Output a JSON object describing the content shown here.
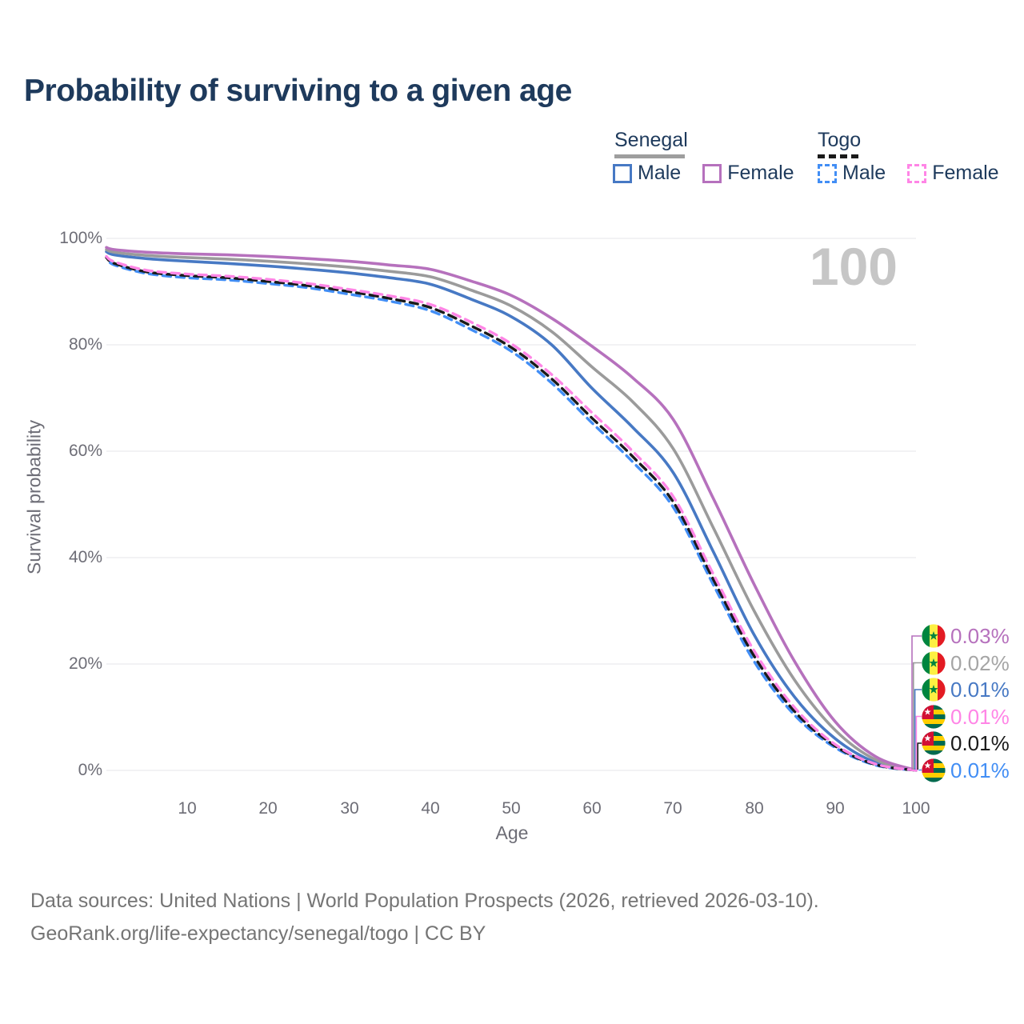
{
  "title": "Probability of surviving to a given age",
  "frame_year_label": "100",
  "axes": {
    "x_label": "Age",
    "y_label": "Survival probability",
    "y_ticks": [
      "0%",
      "20%",
      "40%",
      "60%",
      "80%",
      "100%"
    ]
  },
  "legend": {
    "groups": [
      {
        "label": "Senegal",
        "line_style": "solid",
        "underline_color": "#9e9e9e",
        "items": [
          {
            "label": "Male",
            "color": "#4779c4"
          },
          {
            "label": "Female",
            "color": "#b671bd"
          }
        ]
      },
      {
        "label": "Togo",
        "line_style": "dashed",
        "underline_color": "#1a1a1a",
        "items": [
          {
            "label": "Male",
            "color": "#428ef5"
          },
          {
            "label": "Female",
            "color": "#ff85e6"
          }
        ]
      }
    ]
  },
  "chart_data": {
    "type": "line",
    "title": "Probability of surviving to a given age",
    "xlabel": "Age",
    "ylabel": "Survival probability",
    "xlim": [
      0,
      100
    ],
    "ylim": [
      0,
      100
    ],
    "x_ticks": [
      10,
      20,
      30,
      40,
      50,
      60,
      70,
      80,
      90,
      100
    ],
    "y_ticks_percent": [
      0,
      20,
      40,
      60,
      80,
      100
    ],
    "grid": "horizontal",
    "legend_position": "top-right",
    "frame_age": 100,
    "x": [
      0,
      1,
      5,
      10,
      15,
      20,
      25,
      30,
      35,
      40,
      45,
      50,
      55,
      60,
      65,
      70,
      75,
      80,
      85,
      90,
      95,
      100
    ],
    "series": [
      {
        "name": "Senegal Female",
        "country": "Senegal",
        "sex": "Female",
        "style": "solid",
        "color": "#b671bd",
        "flag": "senegal",
        "end_label": "0.03%",
        "end_label_color": "#b671bd",
        "values": [
          98.3,
          97.9,
          97.4,
          97.1,
          96.9,
          96.6,
          96.2,
          95.7,
          95.0,
          94.2,
          92.0,
          89.3,
          85.0,
          79.7,
          73.8,
          66.0,
          51.0,
          35.0,
          20.5,
          9.2,
          2.6,
          0.03
        ]
      },
      {
        "name": "Senegal",
        "country": "Senegal",
        "sex": "All",
        "style": "solid",
        "color": "#9b9b9b",
        "flag": "senegal",
        "end_label": "0.02%",
        "end_label_color": "#a5a5a5",
        "values": [
          97.9,
          97.4,
          96.8,
          96.4,
          96.1,
          95.7,
          95.2,
          94.6,
          93.8,
          92.8,
          90.3,
          87.3,
          82.5,
          75.8,
          69.3,
          60.5,
          45.5,
          30.0,
          17.0,
          7.6,
          2.0,
          0.02
        ]
      },
      {
        "name": "Senegal Male",
        "country": "Senegal",
        "sex": "Male",
        "style": "solid",
        "color": "#4779c4",
        "flag": "senegal",
        "end_label": "0.01%",
        "end_label_color": "#4779c4",
        "values": [
          97.5,
          96.9,
          96.2,
          95.7,
          95.3,
          94.8,
          94.2,
          93.5,
          92.6,
          91.4,
          88.6,
          85.3,
          80.0,
          71.8,
          64.5,
          56.0,
          41.0,
          25.5,
          13.8,
          6.0,
          1.5,
          0.01
        ]
      },
      {
        "name": "Togo Female",
        "country": "Togo",
        "sex": "Female",
        "style": "dashed",
        "color": "#ff85e6",
        "flag": "togo",
        "end_label": "0.01%",
        "end_label_color": "#ff85e6",
        "values": [
          96.6,
          95.6,
          94.0,
          93.3,
          92.9,
          92.3,
          91.5,
          90.4,
          89.2,
          87.6,
          84.3,
          80.2,
          74.4,
          67.2,
          60.0,
          51.5,
          36.8,
          22.5,
          11.8,
          4.9,
          1.2,
          0.01
        ]
      },
      {
        "name": "Togo",
        "country": "Togo",
        "sex": "All",
        "style": "dashed",
        "color": "#1a1a1a",
        "flag": "togo",
        "end_label": "0.01%",
        "end_label_color": "#1a1a1a",
        "values": [
          96.4,
          95.3,
          93.7,
          93.0,
          92.6,
          91.9,
          91.1,
          90.0,
          88.7,
          87.0,
          83.6,
          79.5,
          73.6,
          66.2,
          59.0,
          50.5,
          35.8,
          21.5,
          11.1,
          4.6,
          1.1,
          0.01
        ]
      },
      {
        "name": "Togo Male",
        "country": "Togo",
        "sex": "Male",
        "style": "dashed",
        "color": "#428ef5",
        "flag": "togo",
        "end_label": "0.01%",
        "end_label_color": "#428ef5",
        "values": [
          96.2,
          95.0,
          93.4,
          92.6,
          92.2,
          91.5,
          90.7,
          89.5,
          88.2,
          86.4,
          82.9,
          78.8,
          72.8,
          65.3,
          58.0,
          49.5,
          34.8,
          20.5,
          10.4,
          4.3,
          1.0,
          0.01
        ]
      }
    ]
  },
  "footer": {
    "line1": "Data sources: United Nations | World Population Prospects (2026, retrieved 2026-03-10).",
    "line2": "GeoRank.org/life-expectancy/senegal/togo | CC BY"
  }
}
